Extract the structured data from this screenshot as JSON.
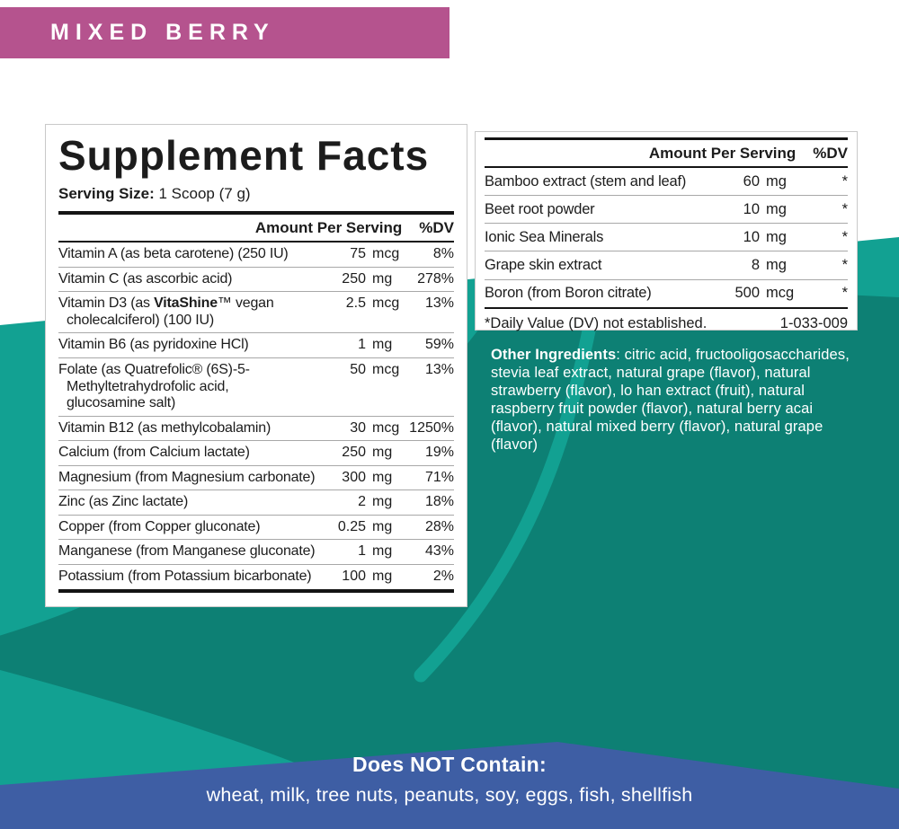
{
  "colors": {
    "magenta": "#b5538e",
    "teal_light": "#12a192",
    "teal_dark": "#0d8074",
    "blue": "#3e5ea4"
  },
  "banner": {
    "label": "MIXED BERRY"
  },
  "supplement_panel": {
    "title": "Supplement Facts",
    "serving_size_label": "Serving Size:",
    "serving_size_value": "1 Scoop (7 g)",
    "col_amount": "Amount Per Serving",
    "col_dv": "%DV",
    "rows": [
      {
        "name": "Vitamin A (as beta carotene) (250 IU)",
        "amount": "75",
        "unit": "mcg",
        "dv": "8%"
      },
      {
        "name": "Vitamin C (as ascorbic acid)",
        "amount": "250",
        "unit": "mg",
        "dv": "278%"
      },
      {
        "name": "Vitamin D3 (as **VitaShine**™ vegan\ncholecalciferol) (100 IU)",
        "amount": "2.5",
        "unit": "mcg",
        "dv": "13%"
      },
      {
        "name": "Vitamin B6 (as pyridoxine HCl)",
        "amount": "1",
        "unit": "mg",
        "dv": "59%"
      },
      {
        "name": "Folate (as Quatrefolic® (6S)-5-\nMethyltetrahydrofolic acid,\nglucosamine salt)",
        "amount": "50",
        "unit": "mcg",
        "dv": "13%"
      },
      {
        "name": "Vitamin B12 (as methylcobalamin)",
        "amount": "30",
        "unit": "mcg",
        "dv": "1250%"
      },
      {
        "name": "Calcium (from Calcium lactate)",
        "amount": "250",
        "unit": "mg",
        "dv": "19%"
      },
      {
        "name": "Magnesium (from Magnesium carbonate)",
        "amount": "300",
        "unit": "mg",
        "dv": "71%"
      },
      {
        "name": "Zinc (as Zinc lactate)",
        "amount": "2",
        "unit": "mg",
        "dv": "18%"
      },
      {
        "name": "Copper (from Copper gluconate)",
        "amount": "0.25",
        "unit": "mg",
        "dv": "28%"
      },
      {
        "name": "Manganese (from Manganese gluconate)",
        "amount": "1",
        "unit": "mg",
        "dv": "43%"
      },
      {
        "name": "Potassium (from Potassium bicarbonate)",
        "amount": "100",
        "unit": "mg",
        "dv": "2%"
      }
    ]
  },
  "extras_panel": {
    "col_amount": "Amount Per Serving",
    "col_dv": "%DV",
    "rows": [
      {
        "name": "Bamboo extract (stem and leaf)",
        "amount": "60",
        "unit": "mg",
        "dv": "*"
      },
      {
        "name": "Beet root powder",
        "amount": "10",
        "unit": "mg",
        "dv": "*"
      },
      {
        "name": "Ionic Sea Minerals",
        "amount": "10",
        "unit": "mg",
        "dv": "*"
      },
      {
        "name": "Grape skin extract",
        "amount": "8",
        "unit": "mg",
        "dv": "*"
      },
      {
        "name": "Boron (from Boron citrate)",
        "amount": "500",
        "unit": "mcg",
        "dv": "*"
      }
    ],
    "footnote": "*Daily Value (DV) not established.",
    "code": "1-033-009"
  },
  "other_ingredients": {
    "text": "**Other Ingredients**: citric acid, fructooligosaccharides, stevia leaf extract, natural grape (flavor), natural strawberry (flavor), lo han extract (fruit), natural raspberry fruit powder (flavor), natural berry acai (flavor), natural mixed berry (flavor), natural grape (flavor)"
  },
  "does_not_contain": {
    "title": "Does NOT Contain:",
    "items": "wheat, milk, tree nuts, peanuts, soy, eggs, fish, shellfish"
  }
}
